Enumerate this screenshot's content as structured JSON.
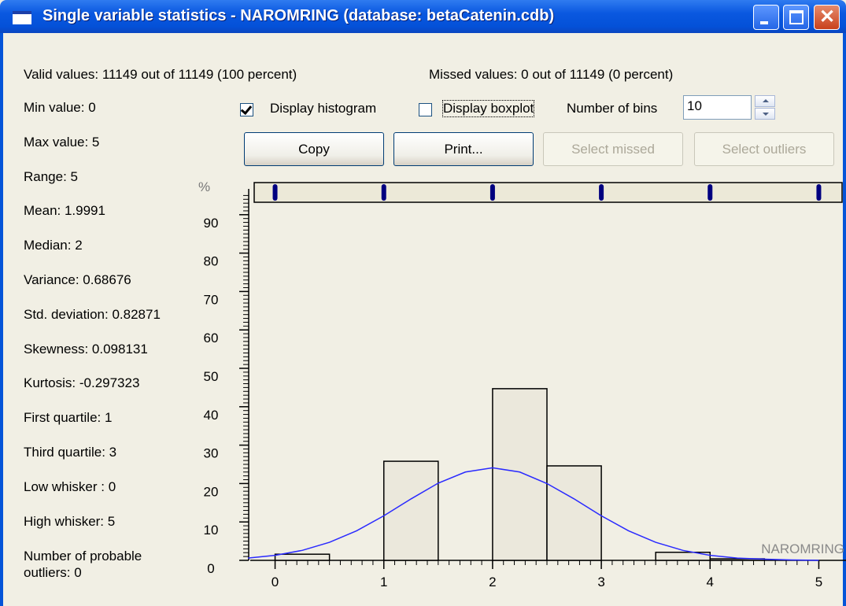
{
  "window": {
    "title": "Single variable statistics - NAROMRING (database: betaCatenin.cdb)"
  },
  "summary": {
    "valid": "Valid values: 11149 out of 11149 (100 percent)",
    "missed": "Missed values: 0 out of 11149 (0 percent)"
  },
  "stats": [
    "Min value: 0",
    "Max value: 5",
    "Range: 5",
    "Mean: 1.9991",
    "Median: 2",
    "Variance: 0.68676",
    "Std. deviation: 0.82871",
    "Skewness: 0.098131",
    "Kurtosis: -0.297323",
    "First quartile: 1",
    "Third quartile: 3",
    "Low whisker : 0",
    "High whisker: 5",
    "Number of probable outliers: 0"
  ],
  "controls": {
    "display_histogram": {
      "label": "Display histogram",
      "checked": true
    },
    "display_boxplot": {
      "label": "Display boxplot",
      "checked": false
    },
    "bins_label": "Number of bins",
    "bins_value": 10
  },
  "buttons": [
    {
      "label": "Copy",
      "enabled": true
    },
    {
      "label": "Print...",
      "enabled": true
    },
    {
      "label": "Select missed",
      "enabled": false
    },
    {
      "label": "Select outliers",
      "enabled": false
    }
  ],
  "chart_data": {
    "type": "histogram",
    "y_unit_label": "%",
    "xlabel": "NAROMRING",
    "bins": [
      0,
      0.5,
      1,
      1.5,
      2,
      2.5,
      3,
      3.5,
      4,
      4.5,
      5
    ],
    "values": [
      1.6,
      0,
      25.8,
      0,
      44.7,
      24.6,
      0,
      2.1,
      0.4,
      0
    ],
    "bar_color": "#ebe8dc",
    "xlim": [
      -0.25,
      5.25
    ],
    "xticks": [
      0,
      1,
      2,
      3,
      4,
      5
    ],
    "x_minor_step": 0.1,
    "ylim": [
      0,
      100
    ],
    "yticks": [
      0,
      10,
      20,
      30,
      40,
      50,
      60,
      70,
      80,
      90
    ],
    "y_minor_step": 1,
    "curve": {
      "color": "#2a2aff",
      "x": [
        -0.25,
        0,
        0.25,
        0.5,
        0.75,
        1,
        1.25,
        1.5,
        1.75,
        2,
        2.25,
        2.5,
        2.75,
        3,
        3.25,
        3.5,
        3.75,
        4,
        4.25,
        4.5,
        4.75,
        5
      ],
      "values": [
        0.6,
        1.3,
        2.6,
        4.7,
        7.7,
        11.6,
        16.0,
        20.1,
        23.0,
        24.1,
        23.0,
        20.0,
        16.0,
        11.6,
        7.7,
        4.7,
        2.6,
        1.3,
        0.6,
        0.3,
        0.1,
        0.0
      ]
    },
    "strip_points": [
      0,
      1,
      2,
      3,
      4,
      5
    ],
    "strip_color": "#000080"
  }
}
